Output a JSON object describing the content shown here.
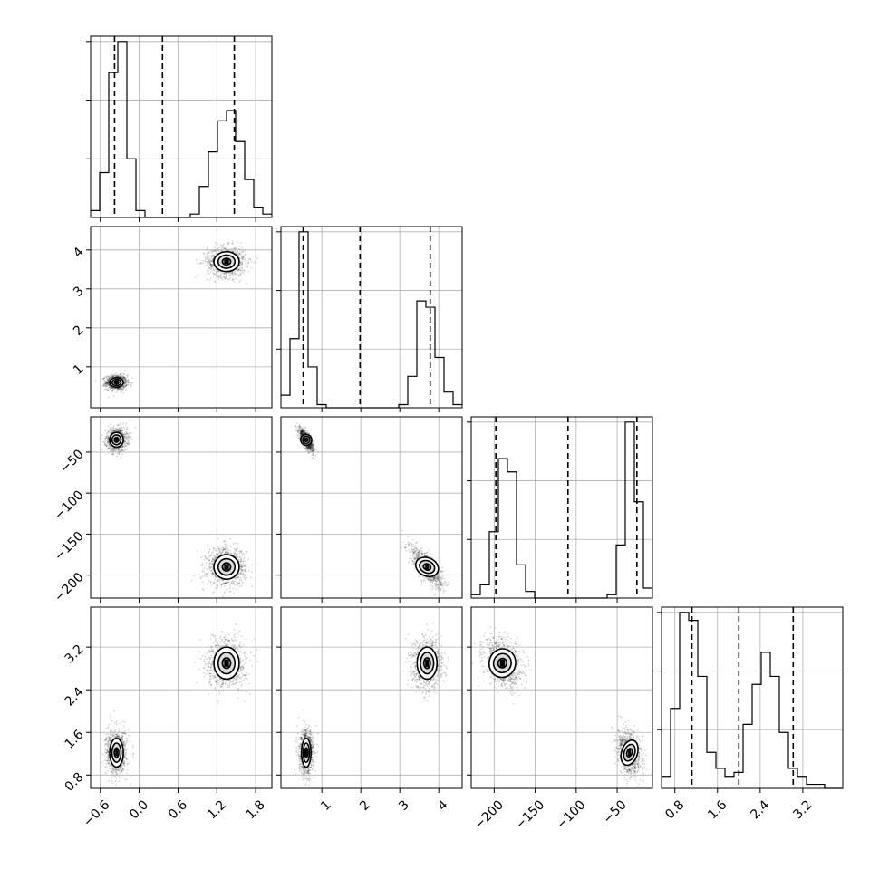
{
  "chart_data": {
    "type": "corner",
    "colors": {
      "line": "#000000",
      "grid": "#b0b0b0",
      "points": "#000000",
      "fill": "#ffffff"
    },
    "grid": true,
    "params": [
      {
        "range": [
          -0.75,
          2.05
        ],
        "ticks": [
          -0.6,
          0.0,
          0.6,
          1.2,
          1.8
        ],
        "tick_labels": [
          "−0.6",
          "0.0",
          "0.6",
          "1.2",
          "1.8"
        ]
      },
      {
        "range": [
          -0.05,
          4.6
        ],
        "ticks": [
          1,
          2,
          3,
          4
        ],
        "tick_labels": [
          "1",
          "2",
          "3",
          "4"
        ]
      },
      {
        "range": [
          -228,
          -7
        ],
        "ticks": [
          -200,
          -150,
          -100,
          -50
        ],
        "tick_labels": [
          "−200",
          "−150",
          "−100",
          "−50"
        ]
      },
      {
        "range": [
          0.55,
          3.95
        ],
        "ticks": [
          0.8,
          1.6,
          2.4,
          3.2
        ],
        "tick_labels": [
          "0.8",
          "1.6",
          "2.4",
          "3.2"
        ]
      }
    ],
    "histograms": [
      {
        "bins": [
          -0.75,
          -0.61,
          -0.47,
          -0.33,
          -0.19,
          -0.05,
          0.09,
          0.23,
          0.37,
          0.51,
          0.65,
          0.79,
          0.93,
          1.07,
          1.21,
          1.35,
          1.49,
          1.63,
          1.77,
          1.91,
          2.05
        ],
        "counts": [
          0.2,
          1.3,
          4.2,
          5.1,
          1.7,
          0.2,
          0.0,
          0.0,
          0.0,
          0.0,
          0.0,
          0.1,
          0.9,
          1.9,
          2.8,
          3.1,
          2.2,
          1.1,
          0.3,
          0.1
        ],
        "quantiles": [
          -0.38,
          0.36,
          1.47
        ]
      },
      {
        "bins": [
          -0.05,
          0.1825,
          0.415,
          0.6475,
          0.88,
          1.1125,
          1.345,
          1.5775,
          1.81,
          2.0425,
          2.275,
          2.5075,
          2.74,
          2.9725,
          3.205,
          3.4375,
          3.67,
          3.9025,
          4.135,
          4.3675,
          4.6
        ],
        "counts": [
          0.4,
          2.2,
          5.6,
          1.3,
          0.1,
          0.0,
          0.0,
          0.0,
          0.0,
          0.0,
          0.0,
          0.0,
          0.0,
          0.1,
          1.0,
          3.4,
          3.2,
          1.6,
          0.5,
          0.1
        ],
        "quantiles": [
          0.52,
          1.98,
          3.78
        ]
      },
      {
        "bins": [
          -228,
          -216.95,
          -205.9,
          -194.85,
          -183.8,
          -172.75,
          -161.7,
          -150.65,
          -139.6,
          -128.55,
          -117.5,
          -106.45,
          -95.4,
          -84.35,
          -73.3,
          -62.25,
          -51.2,
          -40.15,
          -29.1,
          -18.05,
          -7
        ],
        "counts": [
          0.1,
          0.4,
          2.0,
          4.2,
          3.8,
          1.0,
          0.2,
          0.0,
          0.0,
          0.0,
          0.0,
          0.0,
          0.0,
          0.0,
          0.0,
          0.1,
          1.6,
          5.3,
          2.9,
          0.3
        ],
        "quantiles": [
          -198,
          -110,
          -26
        ]
      },
      {
        "bins": [
          0.55,
          0.72,
          0.89,
          1.06,
          1.23,
          1.4,
          1.57,
          1.74,
          1.91,
          2.08,
          2.25,
          2.42,
          2.59,
          2.76,
          2.93,
          3.1,
          3.27,
          3.44,
          3.61,
          3.78,
          3.95
        ],
        "counts": [
          0.3,
          2.0,
          4.4,
          4.2,
          2.8,
          0.9,
          0.5,
          0.3,
          0.4,
          1.6,
          2.6,
          3.4,
          2.8,
          1.4,
          0.5,
          0.3,
          0.1,
          0.1,
          0.0,
          0.0
        ],
        "quantiles": [
          1.12,
          2.0,
          3.02
        ]
      }
    ],
    "clusters": [
      {
        "center": [
          -0.35,
          0.6,
          -35,
          1.22
        ],
        "sd": [
          0.07,
          0.08,
          6,
          0.18
        ]
      },
      {
        "center": [
          1.35,
          3.7,
          -190,
          2.9
        ],
        "sd": [
          0.13,
          0.17,
          10,
          0.2
        ]
      }
    ],
    "correlations": [
      {
        "pair": [
          2,
          1
        ],
        "rho": -0.75
      },
      {
        "pair": [
          3,
          2
        ],
        "rho": -0.3
      }
    ],
    "contour_levels": [
      0.5,
      1.0,
      1.5
    ]
  }
}
